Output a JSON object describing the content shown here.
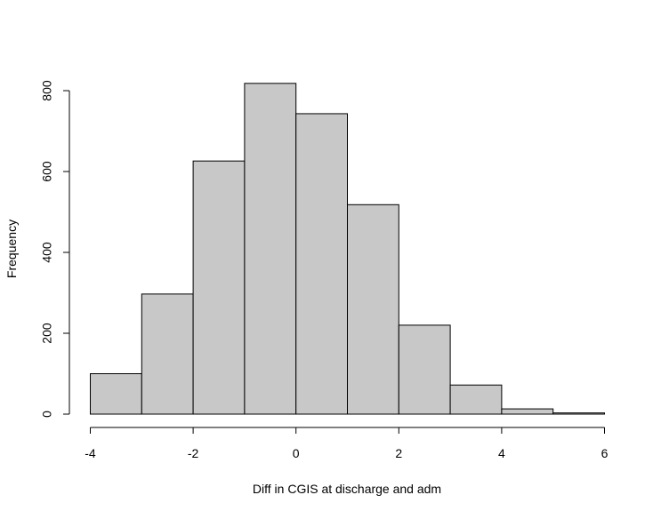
{
  "chart_data": {
    "type": "bar",
    "subtype": "histogram",
    "title": "",
    "xlabel": "Diff in CGIS at discharge and adm",
    "ylabel": "Frequency",
    "bins": [
      {
        "from": -4,
        "to": -3,
        "value": 100
      },
      {
        "from": -3,
        "to": -2,
        "value": 297
      },
      {
        "from": -2,
        "to": -1,
        "value": 626
      },
      {
        "from": -1,
        "to": 0,
        "value": 818
      },
      {
        "from": 0,
        "to": 1,
        "value": 743
      },
      {
        "from": 1,
        "to": 2,
        "value": 518
      },
      {
        "from": 2,
        "to": 3,
        "value": 220
      },
      {
        "from": 3,
        "to": 4,
        "value": 72
      },
      {
        "from": 4,
        "to": 5,
        "value": 13
      },
      {
        "from": 5,
        "to": 6,
        "value": 3
      }
    ],
    "xlim": [
      -4,
      6
    ],
    "ylim": [
      0,
      800
    ],
    "x_ticks": [
      -4,
      -2,
      0,
      2,
      4,
      6
    ],
    "x_tick_labels": [
      "-4",
      "-2",
      "0",
      "2",
      "4",
      "6"
    ],
    "y_ticks": [
      0,
      200,
      400,
      600,
      800
    ],
    "y_tick_labels": [
      "0",
      "200",
      "400",
      "600",
      "800"
    ],
    "bar_fill": "#c8c8c8",
    "bar_stroke": "#000000",
    "grid": false,
    "legend": "none"
  }
}
